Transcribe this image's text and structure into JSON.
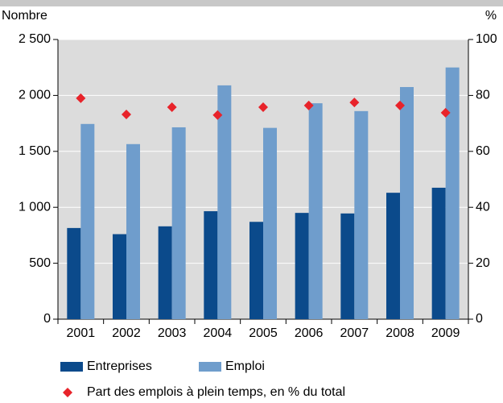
{
  "chart_data": {
    "type": "bar",
    "y_label": "Nombre",
    "y2_label": "%",
    "categories": [
      "2001",
      "2002",
      "2003",
      "2004",
      "2005",
      "2006",
      "2007",
      "2008",
      "2009"
    ],
    "series": [
      {
        "name": "Entreprises",
        "color": "#0b4a8b",
        "values": [
          815,
          760,
          830,
          965,
          870,
          950,
          945,
          1130,
          1175
        ]
      },
      {
        "name": "Emploi",
        "color": "#6f9dcc",
        "values": [
          1745,
          1565,
          1715,
          2090,
          1710,
          1930,
          1860,
          2075,
          2250
        ]
      },
      {
        "name": "Part des emplois à plein temps, en % du total",
        "color": "#e8232a",
        "axis": "y2",
        "marker": "diamond",
        "values": [
          79,
          73.2,
          75.8,
          73,
          75.8,
          76.4,
          77.5,
          76.4,
          73.8
        ]
      }
    ],
    "ylim": [
      0,
      2500
    ],
    "yticks": [
      0,
      500,
      {
        "value": 1000,
        "label": "1 000"
      },
      {
        "value": 1500,
        "label": "1 500"
      },
      {
        "value": 2000,
        "label": "2 000"
      },
      {
        "value": 2500,
        "label": "2 500"
      }
    ],
    "y2lim": [
      0,
      100
    ],
    "y2ticks": [
      0,
      20,
      40,
      60,
      80,
      100
    ],
    "grid": true
  }
}
